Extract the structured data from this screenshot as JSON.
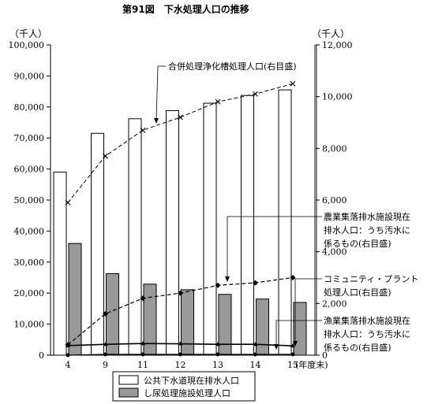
{
  "chart_data": {
    "type": "bar",
    "title": "第91図　下水処理人口の推移",
    "left_unit": "（千人）",
    "right_unit": "（千人）",
    "categories": [
      "4",
      "9",
      "11",
      "12",
      "13",
      "14",
      "15"
    ],
    "x_unit": "(年度末)",
    "left_ylim": [
      0,
      100000
    ],
    "left_ticks": [
      "0",
      "10,000",
      "20,000",
      "30,000",
      "40,000",
      "50,000",
      "60,000",
      "70,000",
      "80,000",
      "90,000",
      "100,000"
    ],
    "right_ylim": [
      0,
      12000
    ],
    "right_ticks": [
      "0",
      "2,000",
      "4,000",
      "6,000",
      "8,000",
      "10,000",
      "12,000"
    ],
    "bar_series": [
      {
        "name": "公共下水道現在排水人口",
        "color": "#ffffff",
        "values": [
          59000,
          71500,
          76200,
          78800,
          81200,
          83700,
          85500
        ]
      },
      {
        "name": "し尿処理施設処理人口",
        "color": "#999999",
        "values": [
          36000,
          26300,
          22900,
          21100,
          19600,
          18100,
          17000
        ]
      }
    ],
    "line_series": [
      {
        "name": "合併処理浄化槽処理人口(右目盛)",
        "marker": "x",
        "values": [
          5900,
          7700,
          8700,
          9200,
          9800,
          10100,
          10500
        ]
      },
      {
        "name": "コミュニティ・プラント処理人口(右目盛)",
        "marker": "diamond",
        "values": [
          400,
          1600,
          2200,
          2400,
          2700,
          2800,
          3000
        ]
      },
      {
        "name": "農業集落排水施設現在排水人口：うち汚水に係るもの(右目盛)",
        "marker": "triangle",
        "values": [
          370,
          420,
          450,
          440,
          420,
          420,
          360
        ]
      },
      {
        "name": "漁業集落排水施設現在排水人口：うち汚水に係るもの(右目盛)",
        "marker": "dot",
        "values": [
          0,
          30,
          30,
          30,
          30,
          30,
          30
        ]
      }
    ],
    "annotations": {
      "gappei": "合併処理浄化槽処理人口(右目盛)",
      "nogyo": [
        "農業集落排水施設現在",
        "排水人口：うち汚水に",
        "係るもの(右目盛)"
      ],
      "community": [
        "コミュニティ・プラント",
        "処理人口(右目盛)"
      ],
      "gyogyo": [
        "漁業集落排水施設現在",
        "排水人口：うち汚水に",
        "係るもの(右目盛)"
      ]
    },
    "legend": {
      "placement": "bottom",
      "items": [
        "公共下水道現在排水人口",
        "し尿処理施設処理人口"
      ]
    }
  }
}
